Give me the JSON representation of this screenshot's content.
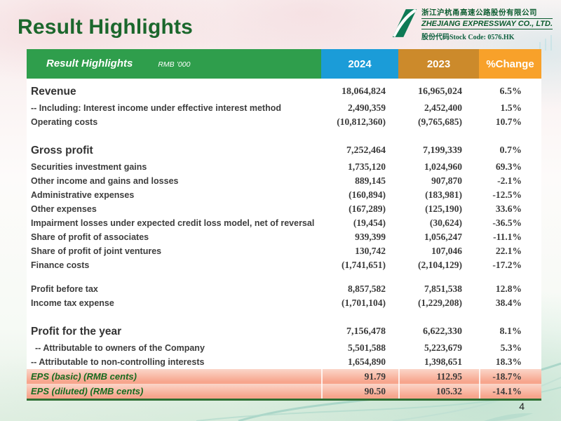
{
  "slide": {
    "title": "Result Highlights",
    "page_number": "4"
  },
  "logo": {
    "company_name_cn": "浙江沪杭甬高速公路股份有限公司",
    "company_name_en": "ZHEJIANG EXPRESSWAY CO., LTD.",
    "stock_code_line": "股份代码Stock Code: 0576.HK"
  },
  "table": {
    "header": {
      "title": "Result Highlights",
      "unit": "RMB ’000",
      "columns": [
        "2024",
        "2023",
        "%Change"
      ]
    },
    "colors": {
      "header_label_bg": "#2f9e4c",
      "col_2024_bg": "#1b9cd8",
      "col_2023_bg": "#cc8a2b",
      "col_change_bg": "#f8a12a",
      "eps_row_bg": "#f7a58d",
      "title_green": "#1b672c",
      "underline_green": "#2f6f33"
    },
    "rows": [
      {
        "label": "Revenue",
        "y2024": "18,064,824",
        "y2023": "16,965,024",
        "change": "6.5%",
        "style": "em"
      },
      {
        "label": "-- Including: Interest income under effective interest method",
        "y2024": "2,490,359",
        "y2023": "2,452,400",
        "change": "1.5%",
        "style": "norm"
      },
      {
        "label": "Operating costs",
        "y2024": "(10,812,360)",
        "y2023": "(9,765,685)",
        "change": "10.7%",
        "style": "norm"
      },
      {
        "spacer": true
      },
      {
        "label": "Gross profit",
        "y2024": "7,252,464",
        "y2023": "7,199,339",
        "change": "0.7%",
        "style": "em"
      },
      {
        "label": "Securities investment gains",
        "y2024": "1,735,120",
        "y2023": "1,024,960",
        "change": "69.3%",
        "style": "norm"
      },
      {
        "label": "Other income and gains and losses",
        "y2024": "889,145",
        "y2023": "907,870",
        "change": "-2.1%",
        "style": "norm"
      },
      {
        "label": "Administrative expenses",
        "y2024": "(160,894)",
        "y2023": "(183,981)",
        "change": "-12.5%",
        "style": "norm"
      },
      {
        "label": "Other expenses",
        "y2024": "(167,289)",
        "y2023": "(125,190)",
        "change": "33.6%",
        "style": "norm"
      },
      {
        "label": "Impairment losses under expected credit loss model, net of reversal",
        "y2024": "(19,454)",
        "y2023": "(30,624)",
        "change": "-36.5%",
        "style": "norm"
      },
      {
        "label": "Share of profit of associates",
        "y2024": "939,399",
        "y2023": "1,056,247",
        "change": "-11.1%",
        "style": "norm"
      },
      {
        "label": "Share of profit of  joint ventures",
        "y2024": "130,742",
        "y2023": "107,046",
        "change": "22.1%",
        "style": "norm"
      },
      {
        "label": "Finance costs",
        "y2024": "(1,741,651)",
        "y2023": "(2,104,129)",
        "change": "-17.2%",
        "style": "norm"
      },
      {
        "spacer": true
      },
      {
        "label": "Profit before tax",
        "y2024": "8,857,582",
        "y2023": "7,851,538",
        "change": "12.8%",
        "style": "norm"
      },
      {
        "label": "Income tax expense",
        "y2024": "(1,701,104)",
        "y2023": "(1,229,208)",
        "change": "38.4%",
        "style": "norm"
      },
      {
        "spacer": true
      },
      {
        "label": "Profit for the year",
        "y2024": "7,156,478",
        "y2023": "6,622,330",
        "change": "8.1%",
        "style": "em"
      },
      {
        "label": "-- Attributable to owners of the Company",
        "y2024": "5,501,588",
        "y2023": "5,223,679",
        "change": "5.3%",
        "style": "norm",
        "indent": true
      },
      {
        "label": "-- Attributable to non-controlling interests",
        "y2024": "1,654,890",
        "y2023": "1,398,651",
        "change": "18.3%",
        "style": "norm"
      },
      {
        "label": "EPS (basic) (RMB cents)",
        "y2024": "91.79",
        "y2023": "112.95",
        "change": "-18.7%",
        "style": "eps"
      },
      {
        "label": "EPS (diluted) (RMB cents)",
        "y2024": "90.50",
        "y2023": "105.32",
        "change": "-14.1%",
        "style": "eps"
      }
    ]
  }
}
